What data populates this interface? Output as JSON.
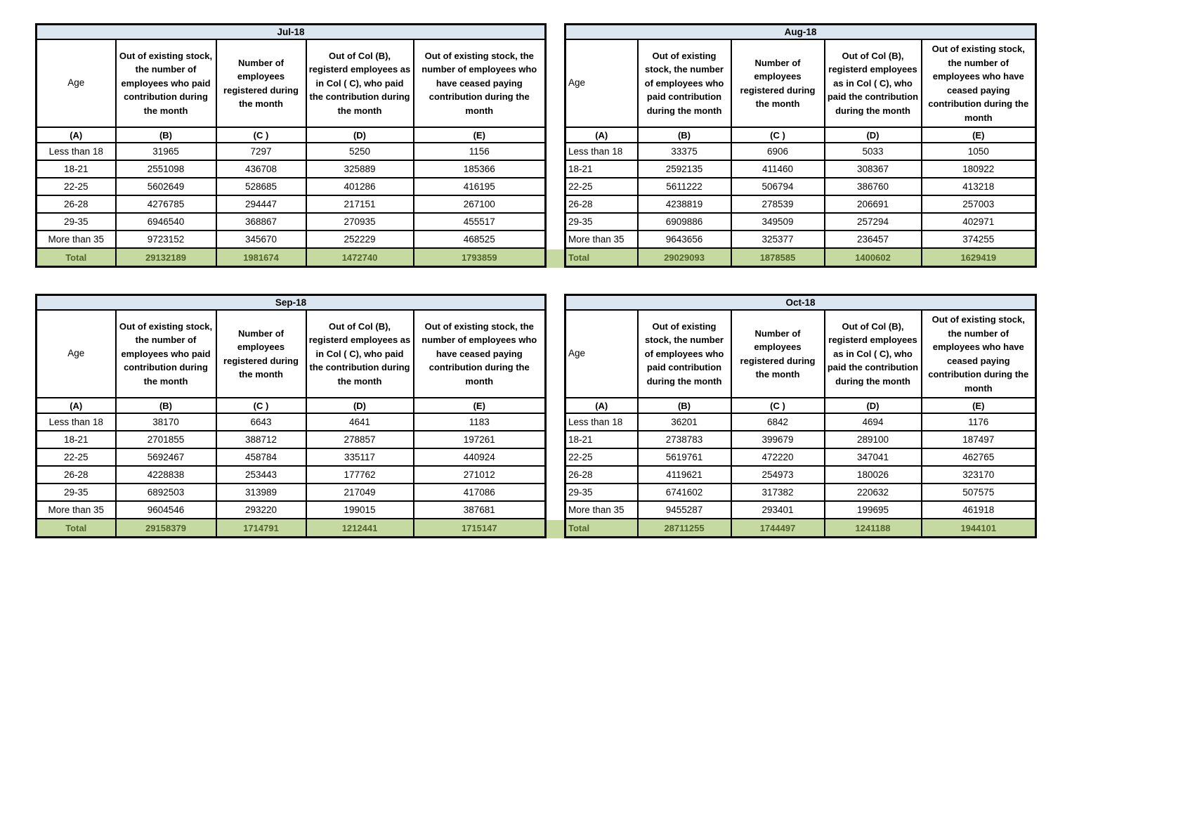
{
  "columns": {
    "age": "Age",
    "b": "Out of existing stock, the number of employees who paid contribution during the month",
    "c": "Number of employees registered during the month",
    "d": "Out of Col (B), registerd employees as in Col ( C), who paid the contribution during the month",
    "e": "Out of existing stock, the number of employees who have ceased paying contribution during the month"
  },
  "column_letters": [
    "(A)",
    "(B)",
    "(C )",
    "(D)",
    "(E)"
  ],
  "colors": {
    "title_bg": "#DCE6F1",
    "total_bg": "#C6D9A0",
    "total_text": "#4F6228",
    "border": "#000000"
  },
  "tables": [
    {
      "title": "Jul-18",
      "rows": [
        {
          "age": "Less than 18",
          "b": "31965",
          "c": "7297",
          "d": "5250",
          "e": "1156"
        },
        {
          "age": "18-21",
          "b": "2551098",
          "c": "436708",
          "d": "325889",
          "e": "185366"
        },
        {
          "age": "22-25",
          "b": "5602649",
          "c": "528685",
          "d": "401286",
          "e": "416195"
        },
        {
          "age": "26-28",
          "b": "4276785",
          "c": "294447",
          "d": "217151",
          "e": "267100"
        },
        {
          "age": "29-35",
          "b": "6946540",
          "c": "368867",
          "d": "270935",
          "e": "455517"
        },
        {
          "age": "More than 35",
          "b": "9723152",
          "c": "345670",
          "d": "252229",
          "e": "468525"
        }
      ],
      "total": {
        "label": "Total",
        "b": "29132189",
        "c": "1981674",
        "d": "1472740",
        "e": "1793859"
      }
    },
    {
      "title": "Aug-18",
      "rows": [
        {
          "age": "Less than 18",
          "b": "33375",
          "c": "6906",
          "d": "5033",
          "e": "1050"
        },
        {
          "age": "18-21",
          "b": "2592135",
          "c": "411460",
          "d": "308367",
          "e": "180922"
        },
        {
          "age": "22-25",
          "b": "5611222",
          "c": "506794",
          "d": "386760",
          "e": "413218"
        },
        {
          "age": "26-28",
          "b": "4238819",
          "c": "278539",
          "d": "206691",
          "e": "257003"
        },
        {
          "age": "29-35",
          "b": "6909886",
          "c": "349509",
          "d": "257294",
          "e": "402971"
        },
        {
          "age": "More than 35",
          "b": "9643656",
          "c": "325377",
          "d": "236457",
          "e": "374255"
        }
      ],
      "total": {
        "label": "Total",
        "b": "29029093",
        "c": "1878585",
        "d": "1400602",
        "e": "1629419"
      }
    },
    {
      "title": "Sep-18",
      "rows": [
        {
          "age": "Less than 18",
          "b": "38170",
          "c": "6643",
          "d": "4641",
          "e": "1183"
        },
        {
          "age": "18-21",
          "b": "2701855",
          "c": "388712",
          "d": "278857",
          "e": "197261"
        },
        {
          "age": "22-25",
          "b": "5692467",
          "c": "458784",
          "d": "335117",
          "e": "440924"
        },
        {
          "age": "26-28",
          "b": "4228838",
          "c": "253443",
          "d": "177762",
          "e": "271012"
        },
        {
          "age": "29-35",
          "b": "6892503",
          "c": "313989",
          "d": "217049",
          "e": "417086"
        },
        {
          "age": "More than 35",
          "b": "9604546",
          "c": "293220",
          "d": "199015",
          "e": "387681"
        }
      ],
      "total": {
        "label": "Total",
        "b": "29158379",
        "c": "1714791",
        "d": "1212441",
        "e": "1715147"
      }
    },
    {
      "title": "Oct-18",
      "rows": [
        {
          "age": "Less than 18",
          "b": "36201",
          "c": "6842",
          "d": "4694",
          "e": "1176"
        },
        {
          "age": "18-21",
          "b": "2738783",
          "c": "399679",
          "d": "289100",
          "e": "187497"
        },
        {
          "age": "22-25",
          "b": "5619761",
          "c": "472220",
          "d": "347041",
          "e": "462765"
        },
        {
          "age": "26-28",
          "b": "4119621",
          "c": "254973",
          "d": "180026",
          "e": "323170"
        },
        {
          "age": "29-35",
          "b": "6741602",
          "c": "317382",
          "d": "220632",
          "e": "507575"
        },
        {
          "age": "More than 35",
          "b": "9455287",
          "c": "293401",
          "d": "199695",
          "e": "461918"
        }
      ],
      "total": {
        "label": "Total",
        "b": "28711255",
        "c": "1744497",
        "d": "1241188",
        "e": "1944101"
      }
    }
  ]
}
